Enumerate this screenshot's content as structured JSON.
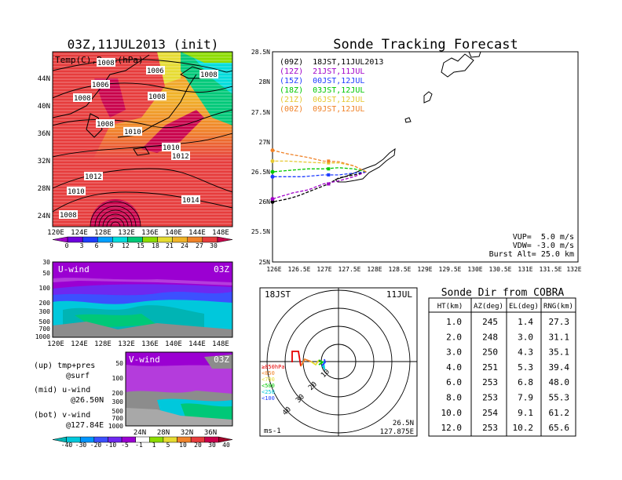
{
  "map_panel": {
    "title": "03Z,11JUL2013 (init)",
    "subtitle": "Temp(C),Pres(hPa)",
    "lat_labels": [
      "44N",
      "40N",
      "36N",
      "32N",
      "28N",
      "24N"
    ],
    "lon_labels": [
      "120E",
      "124E",
      "128E",
      "132E",
      "136E",
      "140E",
      "144E",
      "148E"
    ],
    "isobar_labels": [
      "1008",
      "1006",
      "1008",
      "1006",
      "1008",
      "1008",
      "1008",
      "1010",
      "1010",
      "1012",
      "1012",
      "1014",
      "1010",
      "1008"
    ],
    "colorbar_ticks": [
      "0",
      "3",
      "6",
      "9",
      "12",
      "15",
      "18",
      "21",
      "24",
      "27",
      "30"
    ],
    "colorbar_colors": [
      "#a000c8",
      "#6e00dc",
      "#1e3cff",
      "#00a0ff",
      "#00dcdc",
      "#00c878",
      "#8cdc00",
      "#e6dc32",
      "#f0b428",
      "#f08228",
      "#e63c3c",
      "#c8004a"
    ]
  },
  "u_panel": {
    "label": "U-wind",
    "time": "03Z",
    "y_labels": [
      "30",
      "50",
      "100",
      "200",
      "300",
      "500",
      "700",
      "1000"
    ],
    "x_labels": [
      "120E",
      "124E",
      "128E",
      "132E",
      "136E",
      "140E",
      "144E",
      "148E"
    ]
  },
  "v_panel": {
    "label": "V-wind",
    "time": "03Z",
    "y_labels": [
      "50",
      "100",
      "200",
      "300",
      "500",
      "700",
      "1000"
    ],
    "x_labels": [
      "24N",
      "28N",
      "32N",
      "36N"
    ]
  },
  "notes": [
    {
      "a": "(up) tmp+pres",
      "b": "@surf"
    },
    {
      "a": "(mid) u-wind",
      "b": "@26.50N"
    },
    {
      "a": "(bot) v-wind",
      "b": "@127.84E"
    }
  ],
  "wind_colorbar": {
    "ticks": [
      "-40",
      "-30",
      "-20",
      "-10",
      "-5",
      "-1",
      "1",
      "5",
      "10",
      "20",
      "30",
      "40"
    ],
    "colors": [
      "#00b4b4",
      "#00c8dc",
      "#0096ff",
      "#3c50ff",
      "#6e28f0",
      "#9b00d2",
      "#ffffff",
      "#8cdc00",
      "#e6dc32",
      "#f08228",
      "#e63c3c",
      "#c8004a",
      "#a00028"
    ]
  },
  "tracking": {
    "title": "Sonde Tracking Forecast",
    "lat_labels": [
      "28.5N",
      "28N",
      "27.5N",
      "27N",
      "26.5N",
      "26N",
      "25.5N",
      "25N"
    ],
    "lon_labels": [
      "126E",
      "126.5E",
      "127E",
      "127.5E",
      "128E",
      "128.5E",
      "129E",
      "129.5E",
      "130E",
      "130.5E",
      "131E",
      "131.5E",
      "132E"
    ],
    "legend": [
      {
        "text": "(09Z)  18JST,11JUL2013",
        "color": "#000000"
      },
      {
        "text": "(12Z)  21JST,11JUL",
        "color": "#a000c8"
      },
      {
        "text": "(15Z)  00JST,12JUL",
        "color": "#1e3cff"
      },
      {
        "text": "(18Z)  03JST,12JUL",
        "color": "#00c800"
      },
      {
        "text": "(21Z)  06JST,12JUL",
        "color": "#e6c832"
      },
      {
        "text": "(00Z)  09JST,12JUL",
        "color": "#f08228"
      }
    ],
    "params": [
      {
        "text": "VUP=  5.0 m/s"
      },
      {
        "text": "VDW= -3.0 m/s"
      },
      {
        "text": "Burst Alt= 25.0 km"
      }
    ]
  },
  "hodograph": {
    "time_label": "18JST",
    "date_label": "11JUL",
    "rings": [
      "10",
      "20",
      "30",
      "40"
    ],
    "legend": [
      {
        "text": "≥850hPa",
        "color": "#e60000"
      },
      {
        "text": "<850",
        "color": "#f08228"
      },
      {
        "text": "<700",
        "color": "#e6dc32"
      },
      {
        "text": "<500",
        "color": "#00c800"
      },
      {
        "text": "<250",
        "color": "#00c8dc"
      },
      {
        "text": "<100",
        "color": "#1e3cff"
      }
    ],
    "units": "ms-1",
    "lat": "26.5N",
    "lon": "127.875E"
  },
  "cobra_table": {
    "title": "Sonde Dir from COBRA",
    "headers": [
      "HT(km)",
      "AZ(deg)",
      "EL(deg)",
      "RNG(km)"
    ],
    "rows": [
      [
        "1.0",
        "245",
        "1.4",
        "27.3"
      ],
      [
        "2.0",
        "248",
        "3.0",
        "31.1"
      ],
      [
        "3.0",
        "250",
        "4.3",
        "35.1"
      ],
      [
        "4.0",
        "251",
        "5.3",
        "39.4"
      ],
      [
        "6.0",
        "253",
        "6.8",
        "48.0"
      ],
      [
        "8.0",
        "253",
        "7.9",
        "55.3"
      ],
      [
        "10.0",
        "254",
        "9.1",
        "61.2"
      ],
      [
        "12.0",
        "253",
        "10.2",
        "65.6"
      ]
    ]
  },
  "chart_data": [
    {
      "type": "heatmap",
      "title": "03Z,11JUL2013 (init)",
      "subtitle": "Temp(C),Pres(hPa)",
      "xlim": [
        120,
        150
      ],
      "ylim": [
        22,
        47
      ],
      "x_ticks": [
        "120E",
        "124E",
        "128E",
        "132E",
        "136E",
        "140E",
        "144E",
        "148E"
      ],
      "y_ticks": [
        "24N",
        "28N",
        "32N",
        "36N",
        "40N",
        "44N"
      ],
      "color_scale": [
        0,
        3,
        6,
        9,
        12,
        15,
        18,
        21,
        24,
        27,
        30
      ],
      "isobars_hPa": [
        1006,
        1008,
        1010,
        1012,
        1014
      ]
    },
    {
      "type": "heatmap",
      "title": "U-wind",
      "subtitle": "03Z",
      "y_ticks_hPa": [
        30,
        50,
        100,
        200,
        300,
        500,
        700,
        1000
      ],
      "x_ticks": [
        "120E",
        "124E",
        "128E",
        "132E",
        "136E",
        "140E",
        "144E",
        "148E"
      ]
    },
    {
      "type": "heatmap",
      "title": "V-wind",
      "subtitle": "03Z",
      "y_ticks_hPa": [
        50,
        100,
        200,
        300,
        500,
        700,
        1000
      ],
      "x_ticks": [
        "24N",
        "28N",
        "32N",
        "36N"
      ],
      "color_scale": [
        -40,
        -30,
        -20,
        -10,
        -5,
        -1,
        1,
        5,
        10,
        20,
        30,
        40
      ]
    },
    {
      "type": "line",
      "title": "Sonde Tracking Forecast",
      "xlim": [
        126,
        132
      ],
      "ylim": [
        25,
        28.5
      ],
      "launch": [
        127.84,
        26.5
      ],
      "series": [
        {
          "name": "(09Z) 18JST,11JUL2013",
          "color": "#000000",
          "x": [
            127.84,
            127.6,
            127.3,
            127.1,
            126.8,
            126.5,
            126.3,
            126.0
          ],
          "y": [
            26.5,
            26.45,
            26.4,
            26.3,
            26.2,
            26.1,
            26.05,
            26.0
          ]
        },
        {
          "name": "(12Z) 21JST,11JUL",
          "color": "#a000c8",
          "x": [
            127.84,
            127.6,
            127.3,
            127.0,
            126.7,
            126.4,
            126.0
          ],
          "y": [
            26.5,
            26.42,
            26.35,
            26.3,
            26.2,
            26.15,
            26.05
          ]
        },
        {
          "name": "(15Z) 00JST,12JUL",
          "color": "#1e3cff",
          "x": [
            127.84,
            127.6,
            127.3,
            127.0,
            126.6,
            126.3,
            126.0
          ],
          "y": [
            26.5,
            26.48,
            26.45,
            26.45,
            26.42,
            26.42,
            26.42
          ]
        },
        {
          "name": "(18Z) 03JST,12JUL",
          "color": "#00c800",
          "x": [
            127.84,
            127.6,
            127.3,
            127.0,
            126.7,
            126.4,
            126.0
          ],
          "y": [
            26.5,
            26.55,
            26.57,
            26.55,
            26.55,
            26.53,
            26.5
          ]
        },
        {
          "name": "(21Z) 06JST,12JUL",
          "color": "#e6c832",
          "x": [
            127.84,
            127.6,
            127.3,
            127.0,
            126.7,
            126.3,
            126.0
          ],
          "y": [
            26.5,
            26.6,
            26.65,
            26.65,
            26.66,
            26.68,
            26.68
          ]
        },
        {
          "name": "(00Z) 09JST,12JUL",
          "color": "#f08228",
          "x": [
            127.84,
            127.6,
            127.3,
            127.0,
            126.7,
            126.3,
            126.0
          ],
          "y": [
            26.5,
            26.6,
            26.67,
            26.68,
            26.74,
            26.8,
            26.86
          ]
        }
      ]
    },
    {
      "type": "table",
      "title": "Sonde Dir from COBRA",
      "headers": [
        "HT(km)",
        "AZ(deg)",
        "EL(deg)",
        "RNG(km)"
      ],
      "rows": [
        [
          "1.0",
          "245",
          "1.4",
          "27.3"
        ],
        [
          "2.0",
          "248",
          "3.0",
          "31.1"
        ],
        [
          "3.0",
          "250",
          "4.3",
          "35.1"
        ],
        [
          "4.0",
          "251",
          "5.3",
          "39.4"
        ],
        [
          "6.0",
          "253",
          "6.8",
          "48.0"
        ],
        [
          "8.0",
          "253",
          "7.9",
          "55.3"
        ],
        [
          "10.0",
          "254",
          "9.1",
          "61.2"
        ],
        [
          "12.0",
          "253",
          "10.2",
          "65.6"
        ]
      ]
    }
  ]
}
